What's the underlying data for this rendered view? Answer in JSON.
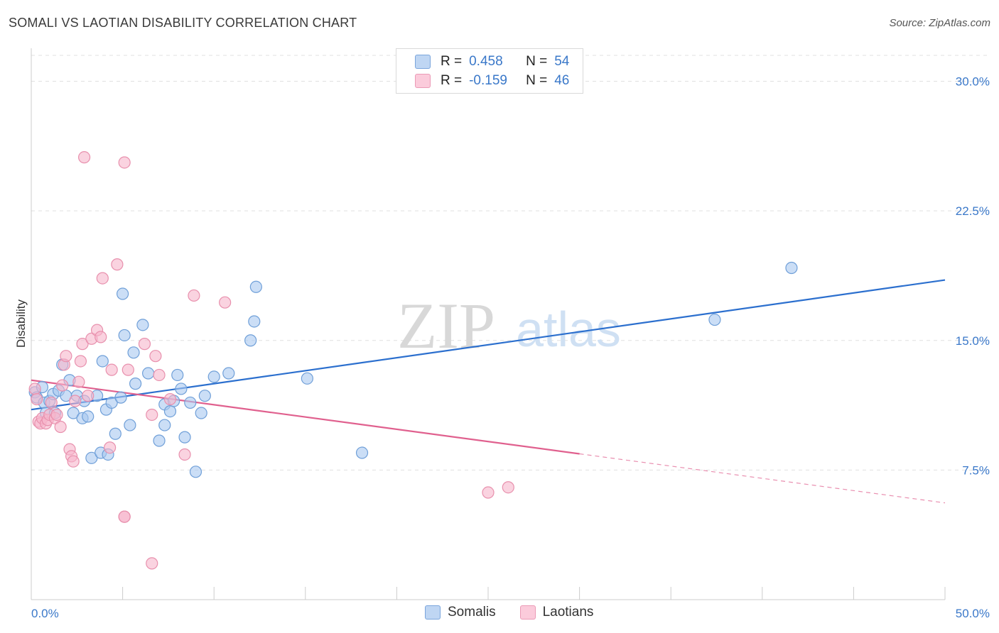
{
  "title": "SOMALI VS LAOTIAN DISABILITY CORRELATION CHART",
  "source": "Source: ZipAtlas.com",
  "watermark": {
    "zip": "ZIP",
    "atlas": "atlas"
  },
  "colors": {
    "somali_fill": "#a8c8f0",
    "somali_stroke": "#6f9fd8",
    "somali_line": "#2b6fce",
    "laotian_fill": "#f6b6cb",
    "laotian_stroke": "#e890ad",
    "laotian_line": "#e0608e",
    "tick_label": "#3a78c9",
    "grid": "#e0e0e0"
  },
  "legend": {
    "somali": {
      "r_label": "R =",
      "r_value": "0.458",
      "n_label": "N =",
      "n_value": "54"
    },
    "laotian": {
      "r_label": "R =",
      "r_value": "-0.159",
      "n_label": "N =",
      "n_value": "46"
    }
  },
  "chart_data": {
    "type": "scatter",
    "title": "SOMALI VS LAOTIAN DISABILITY CORRELATION CHART",
    "xlabel": "",
    "ylabel": "Disability",
    "xlim": [
      0,
      50
    ],
    "ylim": [
      0,
      31.5
    ],
    "x_tick_labels": [
      "0.0%",
      "50.0%"
    ],
    "y_ticks": [
      7.5,
      15.0,
      22.5,
      30.0
    ],
    "y_tick_labels": [
      "7.5%",
      "15.0%",
      "22.5%",
      "30.0%"
    ],
    "legend_bottom": [
      "Somalis",
      "Laotians"
    ],
    "series": [
      {
        "name": "Somalis",
        "r": 0.458,
        "n": 54,
        "trend": {
          "x": [
            0,
            50
          ],
          "y": [
            11.0,
            18.5
          ],
          "dashed_from": null
        },
        "points": [
          [
            0.2,
            12.0
          ],
          [
            0.3,
            11.7
          ],
          [
            0.6,
            12.3
          ],
          [
            0.7,
            11.4
          ],
          [
            0.8,
            10.8
          ],
          [
            1.0,
            11.5
          ],
          [
            1.2,
            11.9
          ],
          [
            1.3,
            10.8
          ],
          [
            1.5,
            12.1
          ],
          [
            1.7,
            13.6
          ],
          [
            1.9,
            11.8
          ],
          [
            2.1,
            12.7
          ],
          [
            2.3,
            10.8
          ],
          [
            2.5,
            11.8
          ],
          [
            2.8,
            10.5
          ],
          [
            2.9,
            11.5
          ],
          [
            3.1,
            10.6
          ],
          [
            3.3,
            8.2
          ],
          [
            3.6,
            11.8
          ],
          [
            3.8,
            8.5
          ],
          [
            3.9,
            13.8
          ],
          [
            4.1,
            11.0
          ],
          [
            4.2,
            8.4
          ],
          [
            4.4,
            11.4
          ],
          [
            4.6,
            9.6
          ],
          [
            4.9,
            11.7
          ],
          [
            5.0,
            17.7
          ],
          [
            5.1,
            15.3
          ],
          [
            5.4,
            10.1
          ],
          [
            5.6,
            14.3
          ],
          [
            5.7,
            12.5
          ],
          [
            6.1,
            15.9
          ],
          [
            6.4,
            13.1
          ],
          [
            7.0,
            9.2
          ],
          [
            7.3,
            11.3
          ],
          [
            7.3,
            10.1
          ],
          [
            7.6,
            10.9
          ],
          [
            7.8,
            11.5
          ],
          [
            8.0,
            13.0
          ],
          [
            8.2,
            12.2
          ],
          [
            8.4,
            9.4
          ],
          [
            8.7,
            11.4
          ],
          [
            9.0,
            7.4
          ],
          [
            9.3,
            10.8
          ],
          [
            9.5,
            11.8
          ],
          [
            10.0,
            12.9
          ],
          [
            10.8,
            13.1
          ],
          [
            12.0,
            15.0
          ],
          [
            12.2,
            16.1
          ],
          [
            12.3,
            18.1
          ],
          [
            15.1,
            12.8
          ],
          [
            18.1,
            8.5
          ],
          [
            37.4,
            16.2
          ],
          [
            41.6,
            19.2
          ]
        ]
      },
      {
        "name": "Laotians",
        "r": -0.159,
        "n": 46,
        "trend": {
          "x": [
            0,
            50
          ],
          "y": [
            12.7,
            5.6
          ],
          "dashed_from": 30
        },
        "points": [
          [
            0.2,
            12.2
          ],
          [
            0.3,
            11.6
          ],
          [
            0.4,
            10.3
          ],
          [
            0.5,
            10.2
          ],
          [
            0.6,
            10.5
          ],
          [
            0.8,
            10.2
          ],
          [
            0.9,
            10.4
          ],
          [
            1.0,
            10.7
          ],
          [
            1.1,
            11.4
          ],
          [
            1.3,
            10.5
          ],
          [
            1.4,
            10.7
          ],
          [
            1.6,
            10.0
          ],
          [
            1.7,
            12.4
          ],
          [
            1.8,
            13.6
          ],
          [
            1.9,
            14.1
          ],
          [
            2.1,
            8.7
          ],
          [
            2.2,
            8.3
          ],
          [
            2.3,
            8.0
          ],
          [
            2.4,
            11.5
          ],
          [
            2.6,
            12.6
          ],
          [
            2.7,
            13.8
          ],
          [
            2.8,
            14.8
          ],
          [
            2.9,
            25.6
          ],
          [
            3.1,
            11.8
          ],
          [
            3.3,
            15.1
          ],
          [
            3.6,
            15.6
          ],
          [
            3.8,
            15.2
          ],
          [
            3.9,
            18.6
          ],
          [
            4.3,
            8.8
          ],
          [
            4.4,
            13.3
          ],
          [
            4.7,
            19.4
          ],
          [
            5.1,
            4.8
          ],
          [
            5.1,
            25.3
          ],
          [
            5.3,
            13.3
          ],
          [
            6.2,
            14.8
          ],
          [
            6.6,
            10.7
          ],
          [
            6.6,
            2.1
          ],
          [
            6.8,
            14.1
          ],
          [
            7.0,
            13.0
          ],
          [
            7.6,
            11.6
          ],
          [
            8.4,
            8.4
          ],
          [
            8.9,
            17.6
          ],
          [
            10.6,
            17.2
          ],
          [
            25.0,
            6.2
          ],
          [
            26.1,
            6.5
          ],
          [
            5.1,
            4.8
          ]
        ]
      }
    ]
  }
}
